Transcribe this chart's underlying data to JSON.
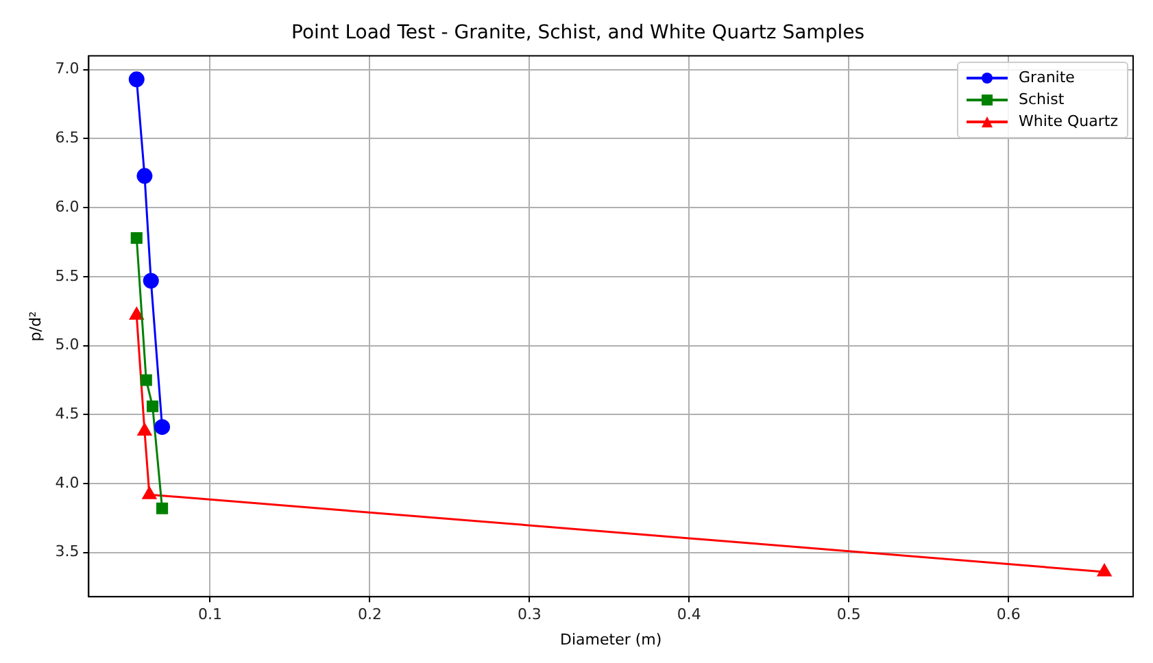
{
  "chart_data": {
    "type": "line",
    "title": "Point Load Test - Granite, Schist, and White Quartz Samples",
    "xlabel": "Diameter (m)",
    "ylabel": "p/d²",
    "xlim": [
      0.024,
      0.678
    ],
    "xticks": [
      0.1,
      0.2,
      0.3,
      0.4,
      0.5,
      0.6
    ],
    "ylim": [
      3.18,
      7.1
    ],
    "yticks": [
      3.5,
      {
        "value": 4,
        "label": "4.0"
      },
      4.5,
      {
        "value": 5,
        "label": "5.0"
      },
      5.5,
      {
        "value": 6,
        "label": "6.0"
      },
      6.5,
      {
        "value": 7,
        "label": "7.0"
      }
    ],
    "grid": true,
    "legend": "top right",
    "series": [
      {
        "name": "Granite",
        "color": "#0000ff",
        "marker": "circle",
        "x": [
          0.054,
          0.059,
          0.063,
          0.07
        ],
        "values": [
          6.93,
          6.23,
          5.47,
          4.41
        ]
      },
      {
        "name": "Schist",
        "color": "#008000",
        "marker": "square",
        "x": [
          0.054,
          0.06,
          0.064,
          0.07
        ],
        "values": [
          5.78,
          4.75,
          4.56,
          3.82
        ]
      },
      {
        "name": "White Quartz",
        "color": "#ff0000",
        "marker": "triangle",
        "x": [
          0.054,
          0.059,
          0.062,
          0.66
        ],
        "values": [
          5.22,
          4.38,
          3.92,
          3.36
        ]
      }
    ]
  }
}
